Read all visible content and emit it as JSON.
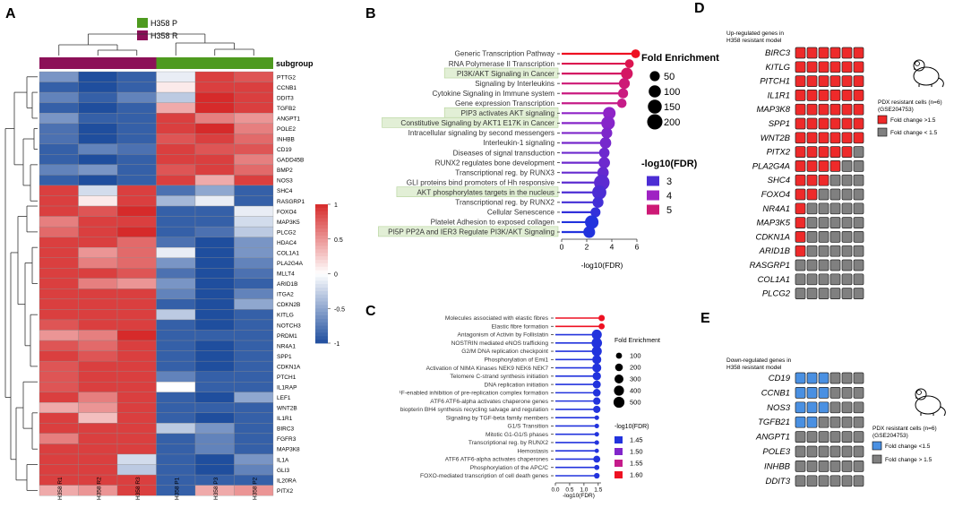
{
  "panel_labels": {
    "a": "A",
    "b": "B",
    "c": "C",
    "d": "D",
    "e": "E"
  },
  "colors": {
    "h358p": "#4e9a1f",
    "h358r": "#8c1058",
    "heat_low": "#1f4e9e",
    "heat_mid": "#ffffff",
    "heat_high": "#d62a2a",
    "red_tile": "#ee2a2a",
    "blue_tile": "#4a90e2",
    "grey_tile": "#808080",
    "highlight": "#e2efd6"
  },
  "chart_data": [
    {
      "panel": "A",
      "type": "heatmap",
      "legend": {
        "p_label": "H358 P",
        "r_label": "H358 R"
      },
      "subgroup_label": "subgroup",
      "columns": [
        "H358 R1",
        "H358 R2",
        "H358 R3",
        "H358 P1",
        "H358 P3",
        "H358 P2"
      ],
      "subgroup": [
        "R",
        "R",
        "R",
        "P",
        "P",
        "P"
      ],
      "color_range": [
        -1,
        1
      ],
      "scale_ticks": [
        "1",
        "0.5",
        "0",
        "-0.5",
        "-1"
      ],
      "rows": [
        "PTTG2",
        "CCNB1",
        "DDIT3",
        "TGFB2",
        "ANGPT1",
        "POLE2",
        "INHBB",
        "CD19",
        "GADD45B",
        "BMP2",
        "NOS3",
        "SHC4",
        "RASGRP1",
        "FOXO4",
        "MAP3K5",
        "PLCG2",
        "HDAC4",
        "COL1A1",
        "PLA2G4A",
        "MLLT4",
        "ARID1B",
        "ITGA2",
        "CDKN2B",
        "KITLG",
        "NOTCH3",
        "PRDM1",
        "NR4A1",
        "SPP1",
        "CDKN1A",
        "PTCH1",
        "IL1RAP",
        "LEF1",
        "WNT2B",
        "IL1R1",
        "BIRC3",
        "FGFR3",
        "MAP3K8",
        "IL1A",
        "GLI3",
        "IL20RA",
        "PITX2"
      ],
      "values": [
        [
          -0.6,
          -1,
          -0.9,
          -0.1,
          0.9,
          0.8
        ],
        [
          -0.9,
          -1,
          -0.9,
          0.1,
          0.9,
          0.9
        ],
        [
          -0.7,
          -0.9,
          -0.7,
          -0.3,
          1,
          0.9
        ],
        [
          -0.9,
          -1,
          -0.9,
          0.4,
          1,
          0.9
        ],
        [
          -0.6,
          -0.9,
          -0.9,
          0.9,
          0.6,
          0.5
        ],
        [
          -0.8,
          -1,
          -0.9,
          0.9,
          1,
          0.6
        ],
        [
          -0.8,
          -1,
          -0.9,
          0.8,
          0.9,
          0.7
        ],
        [
          -0.9,
          -0.7,
          -0.8,
          0.9,
          0.8,
          0.8
        ],
        [
          -0.9,
          -1,
          -0.9,
          0.9,
          0.9,
          0.6
        ],
        [
          -0.7,
          -0.6,
          -0.9,
          0.8,
          0.9,
          0.7
        ],
        [
          -0.9,
          -1,
          -0.9,
          0.9,
          0.4,
          0.9
        ],
        [
          0.9,
          -0.2,
          0.9,
          -0.8,
          -0.5,
          -0.9
        ],
        [
          0.9,
          0.1,
          0.9,
          -0.4,
          -0.1,
          -0.9
        ],
        [
          0.9,
          0.8,
          1,
          -0.9,
          -0.9,
          -0.1
        ],
        [
          0.6,
          0.9,
          0.9,
          -0.9,
          -0.9,
          -0.2
        ],
        [
          0.7,
          0.9,
          1,
          -0.9,
          -0.8,
          -0.3
        ],
        [
          0.9,
          0.9,
          0.7,
          -0.8,
          -1,
          -0.6
        ],
        [
          0.9,
          0.5,
          0.7,
          -0.1,
          -1,
          -0.6
        ],
        [
          0.9,
          0.6,
          0.7,
          -0.6,
          -1,
          -0.7
        ],
        [
          0.9,
          0.9,
          0.8,
          -0.8,
          -1,
          -0.8
        ],
        [
          0.9,
          0.6,
          0.5,
          -0.6,
          -1,
          -0.9
        ],
        [
          0.9,
          0.9,
          0.9,
          -0.7,
          -1,
          -0.7
        ],
        [
          0.9,
          0.9,
          0.9,
          -0.9,
          -1,
          -0.5
        ],
        [
          0.9,
          0.9,
          0.9,
          -0.3,
          -1,
          -0.9
        ],
        [
          0.8,
          0.9,
          0.9,
          -0.9,
          -1,
          -0.9
        ],
        [
          0.5,
          0.6,
          1,
          -0.9,
          -0.9,
          -0.9
        ],
        [
          0.8,
          0.7,
          0.9,
          -0.9,
          -1,
          -0.9
        ],
        [
          0.9,
          0.8,
          0.9,
          -0.9,
          -1,
          -0.9
        ],
        [
          0.8,
          0.9,
          0.9,
          -0.9,
          -1,
          -0.9
        ],
        [
          0.8,
          0.9,
          0.9,
          -0.7,
          -0.9,
          -0.9
        ],
        [
          0.8,
          0.9,
          0.9,
          0,
          -0.9,
          -0.9
        ],
        [
          0.9,
          0.6,
          0.9,
          -0.9,
          -1,
          -0.5
        ],
        [
          0.4,
          0.5,
          0.9,
          -0.9,
          -0.9,
          -0.9
        ],
        [
          0.9,
          0.3,
          0.9,
          -0.9,
          -1,
          -0.9
        ],
        [
          0.9,
          0.9,
          0.9,
          -0.3,
          -0.6,
          -0.9
        ],
        [
          0.6,
          0.9,
          0.9,
          -0.9,
          -0.7,
          -0.9
        ],
        [
          0.9,
          0.9,
          0.9,
          -0.9,
          -0.7,
          -0.9
        ],
        [
          0.9,
          0.9,
          -0.2,
          -0.9,
          -1,
          -0.6
        ],
        [
          0.9,
          0.9,
          -0.3,
          -0.9,
          -1,
          -0.7
        ],
        [
          0.9,
          0.9,
          0.9,
          -0.9,
          -0.9,
          -0.9
        ],
        [
          0.4,
          0.5,
          0.9,
          -0.9,
          0.4,
          0.5
        ]
      ]
    },
    {
      "panel": "B",
      "type": "lollipop",
      "xlabel": "-log10(FDR)",
      "xlim": [
        0,
        6
      ],
      "xticks": [
        "0",
        "2",
        "4",
        "6"
      ],
      "size_legend_title": "Fold Enrichment",
      "size_legend": [
        "50",
        "100",
        "150",
        "200"
      ],
      "color_legend_title": "-log10(FDR)",
      "color_legend": [
        "3",
        "4",
        "5"
      ],
      "terms": [
        {
          "label": "Generic Transcription Pathway",
          "x": 5.9,
          "fe": 30,
          "highlight": false
        },
        {
          "label": "RNA Polymerase II Transcription",
          "x": 5.4,
          "fe": 30,
          "highlight": false
        },
        {
          "label": "PI3K/AKT Signaling in Cancer",
          "x": 5.2,
          "fe": 90,
          "highlight": true
        },
        {
          "label": "Signaling by Interleukins",
          "x": 5.0,
          "fe": 70,
          "highlight": false
        },
        {
          "label": "Cytokine Signaling in Immune system",
          "x": 4.9,
          "fe": 50,
          "highlight": false
        },
        {
          "label": "Gene expression Transcription",
          "x": 4.8,
          "fe": 40,
          "highlight": false
        },
        {
          "label": "PIP3 activates AKT signaling",
          "x": 3.8,
          "fe": 110,
          "highlight": true
        },
        {
          "label": "Constitutive Signaling by AKT1 E17K in Cancer",
          "x": 3.7,
          "fe": 140,
          "highlight": true
        },
        {
          "label": "Intracellular signaling by second messengers",
          "x": 3.6,
          "fe": 70,
          "highlight": false
        },
        {
          "label": "Interleukin-1 signaling",
          "x": 3.5,
          "fe": 80,
          "highlight": false
        },
        {
          "label": "Diseases of signal transduction",
          "x": 3.4,
          "fe": 60,
          "highlight": false
        },
        {
          "label": "RUNX2 regulates bone development",
          "x": 3.4,
          "fe": 80,
          "highlight": false
        },
        {
          "label": "Transcriptional reg. by RUNX3",
          "x": 3.3,
          "fe": 80,
          "highlight": false
        },
        {
          "label": "GLI proteins bind promoters of Hh responsive",
          "x": 3.2,
          "fe": 210,
          "highlight": false
        },
        {
          "label": "AKT phosphorylates targets in the nucleus",
          "x": 3.0,
          "fe": 160,
          "highlight": true
        },
        {
          "label": "Transcriptional reg. by RUNX2",
          "x": 2.9,
          "fe": 70,
          "highlight": false
        },
        {
          "label": "Cellular Senescence",
          "x": 2.7,
          "fe": 50,
          "highlight": false
        },
        {
          "label": "Platelet Adhesion to exposed collagen",
          "x": 2.4,
          "fe": 140,
          "highlight": false
        },
        {
          "label": "PI5P PP2A and IER3 Regulate PI3K/AKT Signaling",
          "x": 2.2,
          "fe": 90,
          "highlight": true
        }
      ]
    },
    {
      "panel": "C",
      "type": "lollipop",
      "xlabel": "-log10(FDR)",
      "xlim": [
        0,
        1.6
      ],
      "xticks": [
        "0.0",
        "0.5",
        "1.0",
        "1.5"
      ],
      "size_legend_title": "Fold Enrichment",
      "size_legend": [
        "100",
        "200",
        "300",
        "400",
        "500"
      ],
      "color_legend_title": "-log10(FDR)",
      "color_legend": [
        "1.45",
        "1.50",
        "1.55",
        "1.60"
      ],
      "terms": [
        {
          "label": "Molecules associated with elastic fibres",
          "x": 1.62,
          "fe": 110
        },
        {
          "label": "Elastic fibre formation",
          "x": 1.62,
          "fe": 100
        },
        {
          "label": "Antagonism of Activin by Follistatin",
          "x": 1.45,
          "fe": 400
        },
        {
          "label": "NOSTRIN mediated eNOS trafficking",
          "x": 1.45,
          "fe": 450
        },
        {
          "label": "G2/M DNA replication checkpoint",
          "x": 1.45,
          "fe": 400
        },
        {
          "label": "Phosphorylation of Emi1",
          "x": 1.45,
          "fe": 300
        },
        {
          "label": "Activation of NIMA Kinases NEK9 NEK6 NEK7",
          "x": 1.45,
          "fe": 300
        },
        {
          "label": "Telomere C-strand synthesis initiation",
          "x": 1.45,
          "fe": 250
        },
        {
          "label": "DNA replication initiation",
          "x": 1.45,
          "fe": 220
        },
        {
          "label": "¹F-enabled inhibition of pre-replication complex formation",
          "x": 1.45,
          "fe": 200
        },
        {
          "label": "ATF6 ATF6-alpha activates chaperone genes",
          "x": 1.45,
          "fe": 180
        },
        {
          "label": "biopterin BH4 synthesis recycling salvage and regulation",
          "x": 1.45,
          "fe": 170
        },
        {
          "label": "Signaling by TGF-beta family members",
          "x": 1.45,
          "fe": 40
        },
        {
          "label": "G1/S Transition",
          "x": 1.45,
          "fe": 40
        },
        {
          "label": "Mitotic G1-G1/S phases",
          "x": 1.45,
          "fe": 40
        },
        {
          "label": "Transcriptional reg. by RUNX2",
          "x": 1.45,
          "fe": 40
        },
        {
          "label": "Hemostasis",
          "x": 1.45,
          "fe": 30
        },
        {
          "label": "ATF6 ATF6-alpha activates chaperones",
          "x": 1.45,
          "fe": 150
        },
        {
          "label": "Phosphorylation of the APC/C",
          "x": 1.45,
          "fe": 60
        },
        {
          "label": "FOXO-mediated transcription of cell death genes",
          "x": 1.45,
          "fe": 80
        }
      ]
    },
    {
      "panel": "D",
      "type": "table",
      "title_line1": "Up-regulated genes in",
      "title_line2": "H358 resistant model",
      "pdx_line1": "PDX resistant cells (n=6)",
      "pdx_line2": "(GSE204753)",
      "legend": [
        "Fold change >1.5",
        "Fold change < 1.5"
      ],
      "genes": [
        "BIRC3",
        "KITLG",
        "PITCH1",
        "IL1R1",
        "MAP3K8",
        "SPP1",
        "WNT2B",
        "PITX2",
        "PLA2G4A",
        "SHC4",
        "FOXO4",
        "NR4A1",
        "MAP3K5",
        "CDKN1A",
        "ARID1B",
        "RASGRP1",
        "COL1A1",
        "PLCG2"
      ],
      "positive_counts": [
        6,
        6,
        6,
        6,
        6,
        6,
        6,
        5,
        4,
        3,
        2,
        1,
        1,
        1,
        1,
        0,
        0,
        0
      ]
    },
    {
      "panel": "E",
      "type": "table",
      "title_line1": "Down-regulated genes in",
      "title_line2": "H358 resistant model",
      "pdx_line1": "PDX resistant cells (n=6)",
      "pdx_line2": "(GSE204753)",
      "legend": [
        "Fold change <1.5",
        "Fold change > 1.5"
      ],
      "genes": [
        "CD19",
        "CCNB1",
        "NOS3",
        "TGFB21",
        "ANGPT1",
        "POLE3",
        "INHBB",
        "DDIT3"
      ],
      "positive_counts": [
        3,
        3,
        3,
        2,
        0,
        0,
        0,
        0
      ]
    }
  ]
}
